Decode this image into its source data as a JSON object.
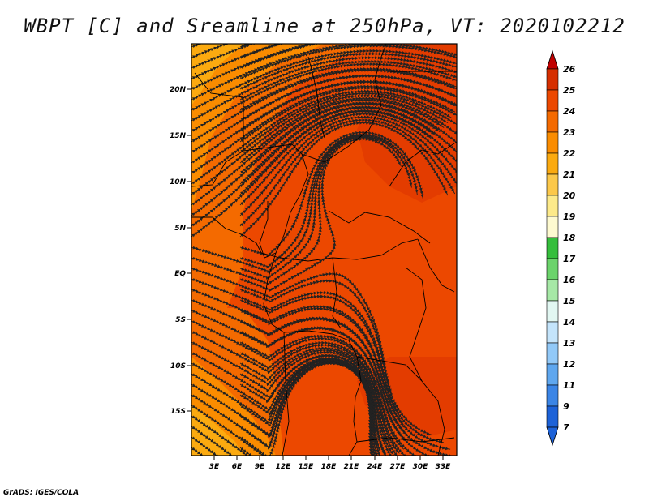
{
  "title": "WBPT [C] and Sreamline at 250hPa, VT: 2020102212",
  "footer": "GrADS: IGES/COLA",
  "map": {
    "lat_labels": [
      "20N",
      "15N",
      "10N",
      "5N",
      "EQ",
      "5S",
      "10S",
      "15S"
    ],
    "lon_labels": [
      "3E",
      "6E",
      "9E",
      "12E",
      "15E",
      "18E",
      "21E",
      "24E",
      "27E",
      "30E",
      "33E"
    ]
  },
  "colorbar": {
    "labels": [
      "26",
      "25",
      "24",
      "23",
      "22",
      "21",
      "20",
      "19",
      "18",
      "17",
      "16",
      "15",
      "14",
      "13",
      "12",
      "11",
      "9",
      "7"
    ],
    "colors": [
      "#c00000",
      "#d62f00",
      "#ec4800",
      "#f46a00",
      "#fa8c00",
      "#fbaa10",
      "#fcc84a",
      "#fdea8a",
      "#fefad0",
      "#35be3c",
      "#6bd36b",
      "#a6e8a6",
      "#e2f7f2",
      "#c4e4fb",
      "#92c9f8",
      "#5fa7ef",
      "#3b85e6",
      "#1d62d8"
    ],
    "high_color": "#c00000",
    "low_color": "#1d62d8"
  }
}
